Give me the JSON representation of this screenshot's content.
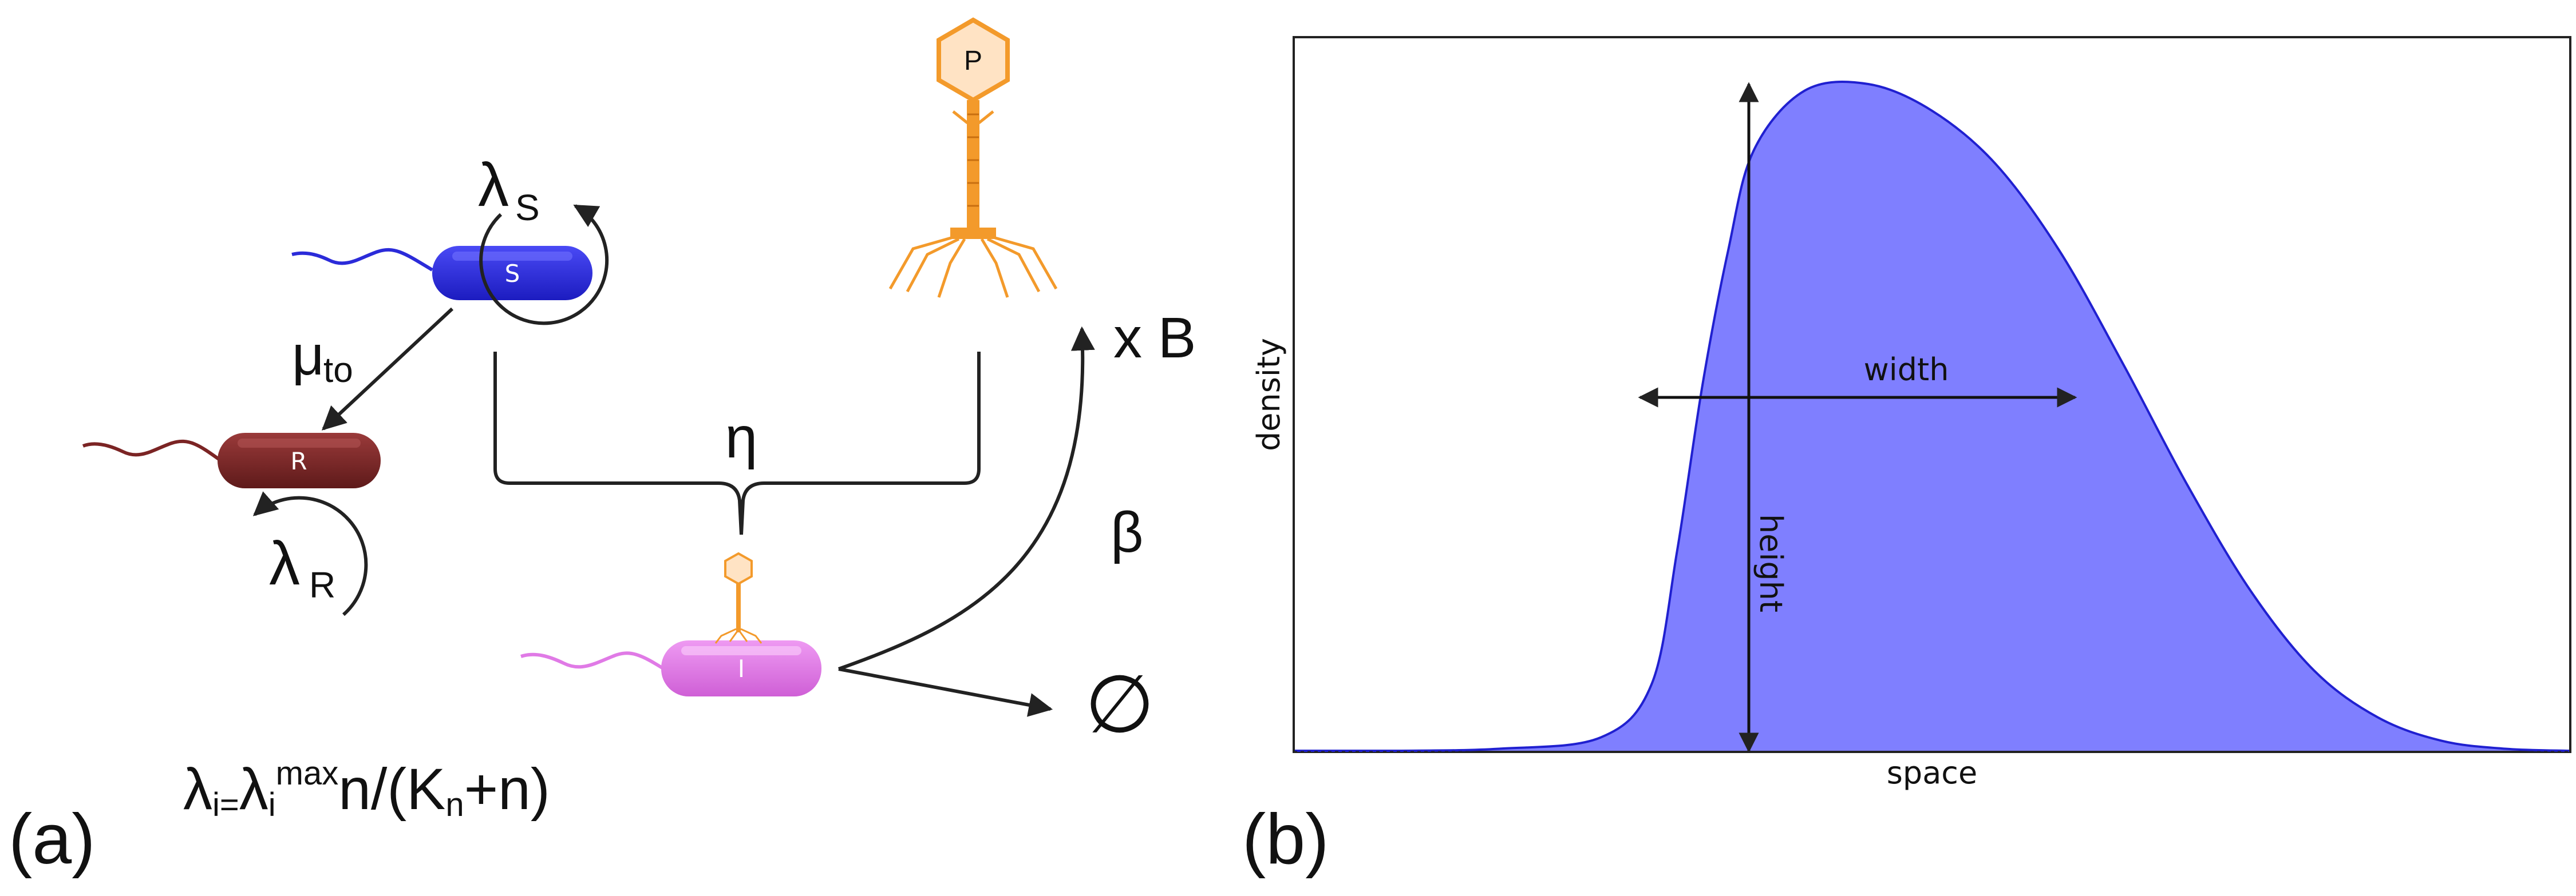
{
  "panel_a": {
    "label": "(a)",
    "cells": {
      "susceptible": "S",
      "resistant": "R",
      "infected": "I"
    },
    "phage": "P",
    "rates": {
      "lambda_s_base": "λ",
      "lambda_s_sub": "S",
      "lambda_r_base": "λ",
      "lambda_r_sub": "R",
      "mu_base": "μ",
      "mu_sub": "to",
      "eta": "η",
      "beta": "β",
      "burst": "x B",
      "death": "∅"
    },
    "formula": {
      "lhs_base": "λ",
      "lhs_sub": "i",
      "equals": "=",
      "rhs_base": "λ",
      "rhs_sub": "i",
      "rhs_sup": "max",
      "rhs_mid": "n/(K",
      "rhs_k_sub": "n",
      "rhs_end": "+n)"
    },
    "colors": {
      "susceptible": "#2b2bd9",
      "resistant": "#7b2424",
      "infected": "#e07ae6",
      "phage": "#f39a2b"
    }
  },
  "panel_b": {
    "label": "(b)",
    "chart_data": {
      "type": "area",
      "xlabel": "space",
      "ylabel": "density",
      "annotations": [
        "width",
        "height"
      ],
      "fill_color": "#7f7fff",
      "line_color": "#2020d0",
      "ticks": "none",
      "x": [
        0,
        0.08,
        0.16,
        0.24,
        0.28,
        0.3,
        0.32,
        0.34,
        0.36,
        0.4,
        0.45,
        0.5,
        0.55,
        0.6,
        0.65,
        0.7,
        0.75,
        0.8,
        0.85,
        0.9,
        0.95,
        1.0
      ],
      "y": [
        0,
        0.0,
        0.003,
        0.02,
        0.1,
        0.3,
        0.55,
        0.75,
        0.9,
        0.99,
        1.0,
        0.96,
        0.88,
        0.75,
        0.58,
        0.4,
        0.24,
        0.12,
        0.05,
        0.015,
        0.003,
        0.0
      ]
    }
  }
}
